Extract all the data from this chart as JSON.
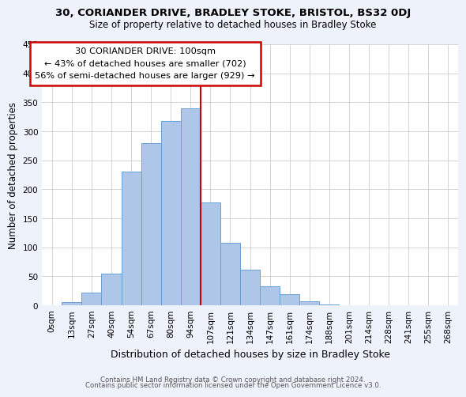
{
  "title": "30, CORIANDER DRIVE, BRADLEY STOKE, BRISTOL, BS32 0DJ",
  "subtitle": "Size of property relative to detached houses in Bradley Stoke",
  "xlabel": "Distribution of detached houses by size in Bradley Stoke",
  "ylabel": "Number of detached properties",
  "bar_labels": [
    "0sqm",
    "13sqm",
    "27sqm",
    "40sqm",
    "54sqm",
    "67sqm",
    "80sqm",
    "94sqm",
    "107sqm",
    "121sqm",
    "134sqm",
    "147sqm",
    "161sqm",
    "174sqm",
    "188sqm",
    "201sqm",
    "214sqm",
    "228sqm",
    "241sqm",
    "255sqm",
    "268sqm"
  ],
  "bar_values": [
    0,
    6,
    22,
    55,
    230,
    280,
    318,
    340,
    178,
    108,
    62,
    33,
    19,
    7,
    1,
    0,
    0,
    0,
    0,
    0,
    0
  ],
  "bar_color": "#aec6e8",
  "bar_edge_color": "#6aa0d4",
  "vline_index": 8,
  "vline_color": "#cc0000",
  "annotation_title": "30 CORIANDER DRIVE: 100sqm",
  "annotation_line1": "← 43% of detached houses are smaller (702)",
  "annotation_line2": "56% of semi-detached houses are larger (929) →",
  "annotation_box_edge": "#cc0000",
  "ylim": [
    0,
    450
  ],
  "yticks": [
    0,
    50,
    100,
    150,
    200,
    250,
    300,
    350,
    400,
    450
  ],
  "footer1": "Contains HM Land Registry data © Crown copyright and database right 2024.",
  "footer2": "Contains public sector information licensed under the Open Government Licence v3.0.",
  "bg_color": "#eef2fb",
  "plot_bg_color": "#ffffff"
}
